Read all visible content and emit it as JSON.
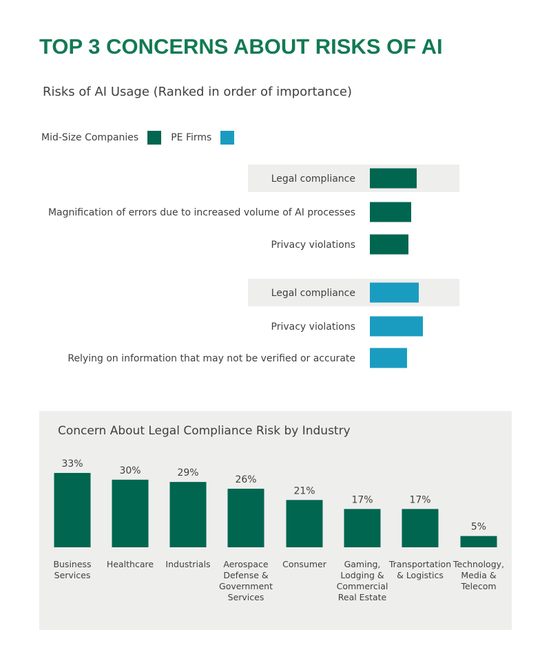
{
  "title": "TOP 3 CONCERNS ABOUT RISKS OF AI",
  "subtitle": "Risks of AI Usage (Ranked in order of importance)",
  "colors": {
    "title": "#127a53",
    "mid_size": "#006650",
    "pe_firms": "#1a9cc0",
    "highlight_row": "#eeeeec",
    "industry_bar": "#006650"
  },
  "legend": [
    {
      "label": "Mid-Size Companies",
      "color": "#006650"
    },
    {
      "label": "PE Firms",
      "color": "#1a9cc0"
    }
  ],
  "chart_data": [
    {
      "type": "bar",
      "orientation": "horizontal",
      "title": "Risks of AI Usage (Ranked in order of importance)",
      "series": [
        {
          "name": "Mid-Size Companies",
          "categories": [
            "Legal compliance",
            "Magnification of errors due to increased volume of AI processes",
            "Privacy violations"
          ],
          "values": [
            68,
            60,
            56
          ],
          "highlight": [
            true,
            false,
            false
          ]
        },
        {
          "name": "PE Firms",
          "categories": [
            "Legal compliance",
            "Privacy violations",
            "Relying on information that may not be verified or accurate"
          ],
          "values": [
            71,
            77,
            54
          ],
          "highlight": [
            true,
            false,
            false
          ]
        }
      ],
      "ylim": [
        0,
        100
      ]
    },
    {
      "type": "bar",
      "title": "Concern About Legal Compliance Risk by Industry",
      "categories": [
        [
          "Business",
          "Services"
        ],
        [
          "Healthcare"
        ],
        [
          "Industrials"
        ],
        [
          "Aerospace",
          "Defense &",
          "Government",
          "Services"
        ],
        [
          "Consumer"
        ],
        [
          "Gaming,",
          "Lodging &",
          "Commercial",
          "Real Estate"
        ],
        [
          "Transportation",
          "& Logistics"
        ],
        [
          "Technology,",
          "Media &",
          "Telecom"
        ]
      ],
      "values": [
        33,
        30,
        29,
        26,
        21,
        17,
        17,
        5
      ],
      "value_labels": [
        "33%",
        "30%",
        "29%",
        "26%",
        "21%",
        "17%",
        "17%",
        "5%"
      ],
      "ylim": [
        0,
        33
      ]
    }
  ]
}
